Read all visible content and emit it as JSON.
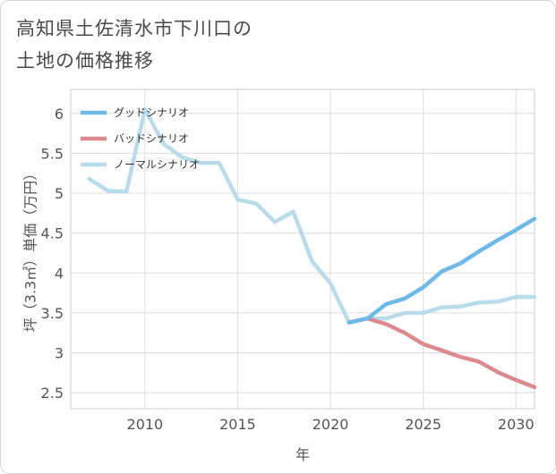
{
  "title_line1": "高知県土佐清水市下川口の",
  "title_line2": "土地の価格推移",
  "chart_data": {
    "type": "line",
    "xlabel": "年",
    "ylabel": "坪（3.3㎡）単価（万円）",
    "xlim": [
      2006,
      2031
    ],
    "ylim": [
      2.3,
      6.3
    ],
    "x_ticks": [
      2010,
      2015,
      2020,
      2025,
      2030
    ],
    "y_ticks": [
      2.5,
      3,
      3.5,
      4,
      4.5,
      5,
      5.5,
      6
    ],
    "grid": true,
    "legend": "top-left",
    "series": [
      {
        "name": "グッドシナリオ",
        "color": "#6cb9ea",
        "x": [
          2021,
          2022,
          2023,
          2024,
          2025,
          2026,
          2027,
          2028,
          2029,
          2030,
          2031
        ],
        "y": [
          3.38,
          3.43,
          3.61,
          3.68,
          3.82,
          4.02,
          4.12,
          4.27,
          4.41,
          4.54,
          4.68
        ]
      },
      {
        "name": "バッドシナリオ",
        "color": "#dc8a90",
        "x": [
          2021,
          2022,
          2023,
          2024,
          2025,
          2026,
          2027,
          2028,
          2029,
          2030,
          2031
        ],
        "y": [
          3.38,
          3.43,
          3.36,
          3.25,
          3.11,
          3.03,
          2.95,
          2.89,
          2.76,
          2.66,
          2.57
        ]
      },
      {
        "name": "ノーマルシナリオ",
        "color": "#b8dcea",
        "x": [
          2007,
          2008,
          2009,
          2010,
          2011,
          2012,
          2013,
          2014,
          2015,
          2016,
          2017,
          2018,
          2019,
          2020,
          2021,
          2022,
          2023,
          2024,
          2025,
          2026,
          2027,
          2028,
          2029,
          2030,
          2031
        ],
        "y": [
          5.18,
          5.03,
          5.02,
          6.05,
          5.62,
          5.45,
          5.38,
          5.38,
          4.92,
          4.87,
          4.64,
          4.77,
          4.15,
          3.87,
          3.38,
          3.43,
          3.43,
          3.5,
          3.5,
          3.57,
          3.58,
          3.63,
          3.64,
          3.7,
          3.7
        ]
      }
    ]
  }
}
